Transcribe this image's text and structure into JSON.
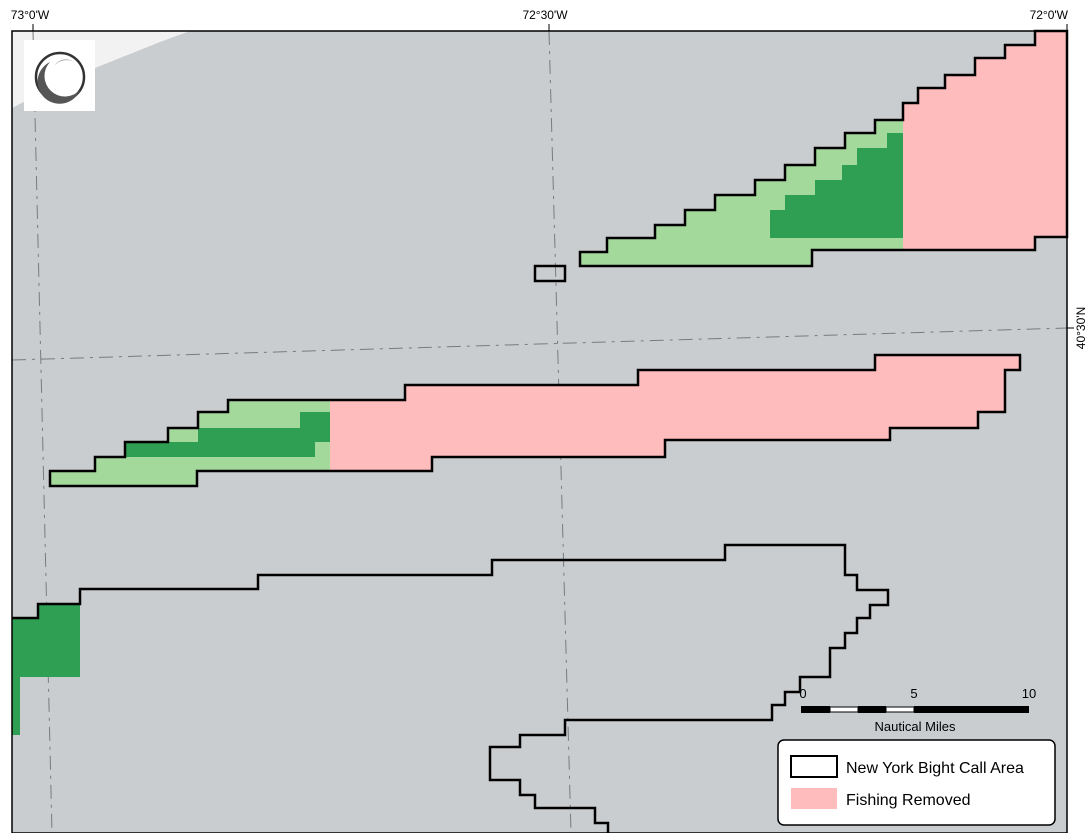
{
  "map": {
    "colors": {
      "background": "#cacdd0",
      "land": "#f2f2f2",
      "call_area_outline": "#000000",
      "fishing_removed": "#ffbcbd",
      "light_green": "#a3d99b",
      "dark_green": "#2f9f53",
      "graticule": "#7a7a7a"
    },
    "graticule": {
      "longitude_labels": [
        "73°0'W",
        "72°30'W",
        "72°0'W"
      ],
      "latitude_labels": [
        "40°30'N"
      ]
    },
    "scale_bar": {
      "tick_labels": [
        "0",
        "5",
        "10"
      ],
      "unit_label": "Nautical Miles"
    },
    "legend": {
      "items": [
        {
          "label": "New York Bight Call Area",
          "swatch": "outline"
        },
        {
          "label": "Fishing Removed",
          "swatch": "fill"
        }
      ]
    },
    "logo": {
      "icon": "crescent-moon-logo-icon"
    }
  }
}
